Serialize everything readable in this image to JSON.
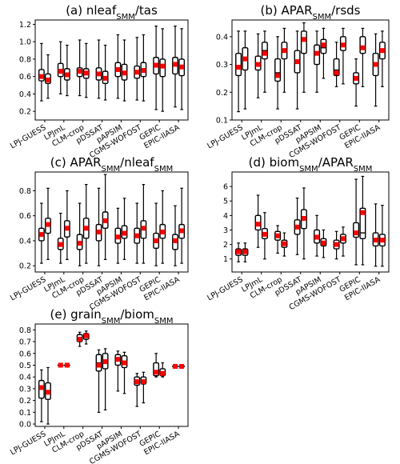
{
  "chart_data": [
    {
      "type": "box",
      "panel": "a",
      "title_parts": [
        "(a) nleaf",
        "SMM",
        "/tas"
      ],
      "ylim": [
        0.1,
        1.25
      ],
      "yticks": [
        0.2,
        0.4,
        0.6,
        0.8,
        1.0,
        1.2
      ],
      "categories": [
        "LPJ-GUESS",
        "LPJmL",
        "CLM-crop",
        "pDSSAT",
        "pAPSIM",
        "CGMS-WOFOST",
        "GEPIC",
        "EPIC-IIASA"
      ],
      "models": [
        [
          {
            "wlo": 0.32,
            "q1": 0.55,
            "med": 0.6,
            "q3": 0.68,
            "whi": 0.98,
            "mean": 0.6
          },
          {
            "wlo": 0.35,
            "q1": 0.52,
            "med": 0.57,
            "q3": 0.63,
            "whi": 0.85,
            "mean": 0.56
          }
        ],
        [
          {
            "wlo": 0.4,
            "q1": 0.6,
            "med": 0.66,
            "q3": 0.75,
            "whi": 1.0,
            "mean": 0.66
          },
          {
            "wlo": 0.38,
            "q1": 0.56,
            "med": 0.62,
            "q3": 0.69,
            "whi": 0.96,
            "mean": 0.62
          }
        ],
        [
          {
            "wlo": 0.38,
            "q1": 0.6,
            "med": 0.66,
            "q3": 0.7,
            "whi": 1.02,
            "mean": 0.66
          },
          {
            "wlo": 0.36,
            "q1": 0.58,
            "med": 0.64,
            "q3": 0.69,
            "whi": 0.98,
            "mean": 0.64
          }
        ],
        [
          {
            "wlo": 0.35,
            "q1": 0.56,
            "med": 0.62,
            "q3": 0.7,
            "whi": 1.02,
            "mean": 0.63
          },
          {
            "wlo": 0.33,
            "q1": 0.52,
            "med": 0.58,
            "q3": 0.66,
            "whi": 0.96,
            "mean": 0.58
          }
        ],
        [
          {
            "wlo": 0.35,
            "q1": 0.6,
            "med": 0.68,
            "q3": 0.76,
            "whi": 1.08,
            "mean": 0.68
          },
          {
            "wlo": 0.32,
            "q1": 0.56,
            "med": 0.64,
            "q3": 0.74,
            "whi": 1.02,
            "mean": 0.64
          }
        ],
        [
          {
            "wlo": 0.33,
            "q1": 0.58,
            "med": 0.65,
            "q3": 0.72,
            "whi": 1.05,
            "mean": 0.65
          },
          {
            "wlo": 0.32,
            "q1": 0.6,
            "med": 0.67,
            "q3": 0.76,
            "whi": 1.08,
            "mean": 0.67
          }
        ],
        [
          {
            "wlo": 0.22,
            "q1": 0.63,
            "med": 0.72,
            "q3": 0.82,
            "whi": 1.18,
            "mean": 0.73
          },
          {
            "wlo": 0.2,
            "q1": 0.6,
            "med": 0.7,
            "q3": 0.8,
            "whi": 1.15,
            "mean": 0.72
          }
        ],
        [
          {
            "wlo": 0.25,
            "q1": 0.63,
            "med": 0.74,
            "q3": 0.82,
            "whi": 1.18,
            "mean": 0.74
          },
          {
            "wlo": 0.22,
            "q1": 0.61,
            "med": 0.72,
            "q3": 0.8,
            "whi": 1.15,
            "mean": 0.71
          }
        ]
      ]
    },
    {
      "type": "box",
      "panel": "b",
      "title_parts": [
        "(b) APAR",
        "SMM",
        "/rsds"
      ],
      "ylim": [
        0.1,
        0.46
      ],
      "yticks": [
        0.1,
        0.2,
        0.3,
        0.4
      ],
      "categories": [
        "LPJ-GUESS",
        "LPJmL",
        "CLM-crop",
        "pDSSAT",
        "pAPSIM",
        "CGMS-WOFOST",
        "GEPIC",
        "EPIC-IIASA"
      ],
      "models": [
        [
          {
            "wlo": 0.13,
            "q1": 0.26,
            "med": 0.29,
            "q3": 0.34,
            "whi": 0.42,
            "mean": 0.29
          },
          {
            "wlo": 0.14,
            "q1": 0.28,
            "med": 0.32,
            "q3": 0.36,
            "whi": 0.42,
            "mean": 0.32
          }
        ],
        [
          {
            "wlo": 0.18,
            "q1": 0.28,
            "med": 0.3,
            "q3": 0.33,
            "whi": 0.41,
            "mean": 0.3
          },
          {
            "wlo": 0.2,
            "q1": 0.32,
            "med": 0.35,
            "q3": 0.38,
            "whi": 0.42,
            "mean": 0.34
          }
        ],
        [
          {
            "wlo": 0.14,
            "q1": 0.24,
            "med": 0.27,
            "q3": 0.32,
            "whi": 0.4,
            "mean": 0.26
          },
          {
            "wlo": 0.2,
            "q1": 0.32,
            "med": 0.35,
            "q3": 0.38,
            "whi": 0.43,
            "mean": 0.35
          }
        ],
        [
          {
            "wlo": 0.14,
            "q1": 0.27,
            "med": 0.31,
            "q3": 0.35,
            "whi": 0.42,
            "mean": 0.31
          },
          {
            "wlo": 0.2,
            "q1": 0.34,
            "med": 0.39,
            "q3": 0.42,
            "whi": 0.45,
            "mean": 0.39
          }
        ],
        [
          {
            "wlo": 0.2,
            "q1": 0.3,
            "med": 0.34,
            "q3": 0.37,
            "whi": 0.42,
            "mean": 0.34
          },
          {
            "wlo": 0.25,
            "q1": 0.34,
            "med": 0.36,
            "q3": 0.39,
            "whi": 0.43,
            "mean": 0.37
          }
        ],
        [
          {
            "wlo": 0.22,
            "q1": 0.26,
            "med": 0.28,
            "q3": 0.32,
            "whi": 0.38,
            "mean": 0.27
          },
          {
            "wlo": 0.23,
            "q1": 0.35,
            "med": 0.37,
            "q3": 0.4,
            "whi": 0.43,
            "mean": 0.37
          }
        ],
        [
          {
            "wlo": 0.15,
            "q1": 0.23,
            "med": 0.25,
            "q3": 0.27,
            "whi": 0.32,
            "mean": 0.25
          },
          {
            "wlo": 0.22,
            "q1": 0.34,
            "med": 0.36,
            "q3": 0.4,
            "whi": 0.43,
            "mean": 0.36
          }
        ],
        [
          {
            "wlo": 0.15,
            "q1": 0.26,
            "med": 0.3,
            "q3": 0.34,
            "whi": 0.41,
            "mean": 0.3
          },
          {
            "wlo": 0.22,
            "q1": 0.32,
            "med": 0.35,
            "q3": 0.38,
            "whi": 0.42,
            "mean": 0.35
          }
        ]
      ]
    },
    {
      "type": "box",
      "panel": "c",
      "title_parts": [
        "(c) APAR",
        "SMM",
        "/nleaf",
        "SMM"
      ],
      "ylim": [
        0.15,
        0.95
      ],
      "yticks": [
        0.2,
        0.4,
        0.6,
        0.8
      ],
      "categories": [
        "LPJ-GUESS",
        "LPJmL",
        "CLM-crop",
        "pDSSAT",
        "pAPSIM",
        "CGMS-WOFOST",
        "GEPIC",
        "EPIC-IIASA"
      ],
      "models": [
        [
          {
            "wlo": 0.22,
            "q1": 0.4,
            "med": 0.45,
            "q3": 0.5,
            "whi": 0.7,
            "mean": 0.45
          },
          {
            "wlo": 0.25,
            "q1": 0.46,
            "med": 0.53,
            "q3": 0.58,
            "whi": 0.82,
            "mean": 0.53
          }
        ],
        [
          {
            "wlo": 0.22,
            "q1": 0.33,
            "med": 0.37,
            "q3": 0.42,
            "whi": 0.62,
            "mean": 0.37
          },
          {
            "wlo": 0.25,
            "q1": 0.43,
            "med": 0.5,
            "q3": 0.56,
            "whi": 0.8,
            "mean": 0.5
          }
        ],
        [
          {
            "wlo": 0.2,
            "q1": 0.33,
            "med": 0.38,
            "q3": 0.45,
            "whi": 0.7,
            "mean": 0.38
          },
          {
            "wlo": 0.22,
            "q1": 0.42,
            "med": 0.5,
            "q3": 0.58,
            "whi": 0.85,
            "mean": 0.5
          }
        ],
        [
          {
            "wlo": 0.2,
            "q1": 0.4,
            "med": 0.47,
            "q3": 0.53,
            "whi": 0.82,
            "mean": 0.47
          },
          {
            "wlo": 0.25,
            "q1": 0.5,
            "med": 0.56,
            "q3": 0.63,
            "whi": 0.93,
            "mean": 0.56
          }
        ],
        [
          {
            "wlo": 0.22,
            "q1": 0.38,
            "med": 0.43,
            "q3": 0.5,
            "whi": 0.66,
            "mean": 0.43
          },
          {
            "wlo": 0.25,
            "q1": 0.42,
            "med": 0.46,
            "q3": 0.52,
            "whi": 0.74,
            "mean": 0.46
          }
        ],
        [
          {
            "wlo": 0.22,
            "q1": 0.38,
            "med": 0.44,
            "q3": 0.5,
            "whi": 0.7,
            "mean": 0.44
          },
          {
            "wlo": 0.22,
            "q1": 0.42,
            "med": 0.5,
            "q3": 0.56,
            "whi": 0.85,
            "mean": 0.5
          }
        ],
        [
          {
            "wlo": 0.2,
            "q1": 0.34,
            "med": 0.4,
            "q3": 0.46,
            "whi": 0.7,
            "mean": 0.4
          },
          {
            "wlo": 0.22,
            "q1": 0.42,
            "med": 0.47,
            "q3": 0.53,
            "whi": 0.8,
            "mean": 0.47
          }
        ],
        [
          {
            "wlo": 0.2,
            "q1": 0.33,
            "med": 0.4,
            "q3": 0.45,
            "whi": 0.68,
            "mean": 0.4
          },
          {
            "wlo": 0.22,
            "q1": 0.42,
            "med": 0.48,
            "q3": 0.53,
            "whi": 0.82,
            "mean": 0.48
          }
        ]
      ]
    },
    {
      "type": "box",
      "panel": "d",
      "title_parts": [
        "(d) biom",
        "SMM",
        "/APAR",
        "SMM"
      ],
      "ylim": [
        0.1,
        7.0
      ],
      "yticks": [
        1,
        2,
        3,
        4,
        5,
        6
      ],
      "categories": [
        "LPJ-GUESS",
        "LPJmL",
        "CLM-crop",
        "pDSSAT",
        "pAPSIM",
        "CGMS-WOFOST",
        "GEPIC",
        "EPIC-IIASA"
      ],
      "models": [
        [
          {
            "wlo": 0.8,
            "q1": 1.25,
            "med": 1.5,
            "q3": 1.7,
            "whi": 2.1,
            "mean": 1.5
          },
          {
            "wlo": 0.8,
            "q1": 1.25,
            "med": 1.5,
            "q3": 1.7,
            "whi": 2.1,
            "mean": 1.5
          }
        ],
        [
          {
            "wlo": 1.8,
            "q1": 3.0,
            "med": 3.45,
            "q3": 4.0,
            "whi": 5.4,
            "mean": 3.4
          },
          {
            "wlo": 1.0,
            "q1": 2.4,
            "med": 2.7,
            "q3": 3.1,
            "whi": 4.2,
            "mean": 2.7
          }
        ],
        [
          {
            "wlo": 1.4,
            "q1": 2.3,
            "med": 2.6,
            "q3": 2.9,
            "whi": 3.3,
            "mean": 2.6
          },
          {
            "wlo": 1.2,
            "q1": 1.8,
            "med": 2.05,
            "q3": 2.3,
            "whi": 2.8,
            "mean": 2.05
          }
        ],
        [
          {
            "wlo": 1.3,
            "q1": 2.7,
            "med": 3.2,
            "q3": 3.7,
            "whi": 5.2,
            "mean": 3.2
          },
          {
            "wlo": 1.0,
            "q1": 3.1,
            "med": 3.8,
            "q3": 4.4,
            "whi": 5.9,
            "mean": 3.8
          }
        ],
        [
          {
            "wlo": 1.2,
            "q1": 2.1,
            "med": 2.6,
            "q3": 3.0,
            "whi": 4.0,
            "mean": 2.5
          },
          {
            "wlo": 1.1,
            "q1": 1.9,
            "med": 2.1,
            "q3": 2.4,
            "whi": 3.0,
            "mean": 2.1
          }
        ],
        [
          {
            "wlo": 1.0,
            "q1": 1.7,
            "med": 2.0,
            "q3": 2.3,
            "whi": 2.9,
            "mean": 2.0
          },
          {
            "wlo": 1.2,
            "q1": 2.1,
            "med": 2.4,
            "q3": 2.7,
            "whi": 3.2,
            "mean": 2.4
          }
        ],
        [
          {
            "wlo": 0.6,
            "q1": 2.5,
            "med": 2.8,
            "q3": 3.5,
            "whi": 6.5,
            "mean": 2.8
          },
          {
            "wlo": 0.6,
            "q1": 2.4,
            "med": 2.8,
            "q3": 4.5,
            "whi": 6.7,
            "mean": 4.2
          }
        ],
        [
          {
            "wlo": 0.5,
            "q1": 1.9,
            "med": 2.3,
            "q3": 2.8,
            "whi": 4.8,
            "mean": 2.3
          },
          {
            "wlo": 0.5,
            "q1": 1.9,
            "med": 2.3,
            "q3": 2.7,
            "whi": 4.7,
            "mean": 2.3
          }
        ]
      ]
    },
    {
      "type": "box",
      "panel": "e",
      "title_parts": [
        "(e) grain",
        "SMM",
        "/biom",
        "SMM"
      ],
      "ylim": [
        -0.02,
        0.85
      ],
      "yticks": [
        0.0,
        0.1,
        0.2,
        0.3,
        0.4,
        0.5,
        0.6,
        0.7,
        0.8
      ],
      "categories": [
        "LPJ-GUESS",
        "LPJmL",
        "CLM-crop",
        "pDSSAT",
        "pAPSIM",
        "CGMS-WOFOST",
        "GEPIC",
        "EPIC-IIASA"
      ],
      "models": [
        [
          {
            "wlo": 0.02,
            "q1": 0.22,
            "med": 0.3,
            "q3": 0.37,
            "whi": 0.46,
            "mean": 0.31
          },
          {
            "wlo": 0.0,
            "q1": 0.21,
            "med": 0.27,
            "q3": 0.35,
            "whi": 0.48,
            "mean": 0.27
          }
        ],
        [
          {
            "wlo": 0.495,
            "q1": 0.497,
            "med": 0.5,
            "q3": 0.503,
            "whi": 0.505,
            "mean": 0.5
          },
          {
            "wlo": 0.495,
            "q1": 0.497,
            "med": 0.5,
            "q3": 0.503,
            "whi": 0.505,
            "mean": 0.5
          }
        ],
        [
          {
            "wlo": 0.66,
            "q1": 0.7,
            "med": 0.73,
            "q3": 0.76,
            "whi": 0.78,
            "mean": 0.72
          },
          {
            "wlo": 0.68,
            "q1": 0.72,
            "med": 0.75,
            "q3": 0.77,
            "whi": 0.79,
            "mean": 0.75
          }
        ],
        [
          {
            "wlo": 0.1,
            "q1": 0.45,
            "med": 0.52,
            "q3": 0.59,
            "whi": 0.63,
            "mean": 0.5
          },
          {
            "wlo": 0.12,
            "q1": 0.47,
            "med": 0.54,
            "q3": 0.6,
            "whi": 0.64,
            "mean": 0.53
          }
        ],
        [
          {
            "wlo": 0.28,
            "q1": 0.5,
            "med": 0.55,
            "q3": 0.59,
            "whi": 0.62,
            "mean": 0.55
          },
          {
            "wlo": 0.26,
            "q1": 0.48,
            "med": 0.53,
            "q3": 0.58,
            "whi": 0.61,
            "mean": 0.52
          }
        ],
        [
          {
            "wlo": 0.15,
            "q1": 0.33,
            "med": 0.37,
            "q3": 0.4,
            "whi": 0.43,
            "mean": 0.36
          },
          {
            "wlo": 0.18,
            "q1": 0.34,
            "med": 0.37,
            "q3": 0.4,
            "whi": 0.44,
            "mean": 0.36
          }
        ],
        [
          {
            "wlo": 0.4,
            "q1": 0.41,
            "med": 0.44,
            "q3": 0.52,
            "whi": 0.6,
            "mean": 0.44
          },
          {
            "wlo": 0.4,
            "q1": 0.41,
            "med": 0.43,
            "q3": 0.47,
            "whi": 0.52,
            "mean": 0.43
          }
        ],
        [
          {
            "wlo": 0.48,
            "q1": 0.485,
            "med": 0.49,
            "q3": 0.495,
            "whi": 0.5,
            "mean": 0.49
          },
          {
            "wlo": 0.48,
            "q1": 0.485,
            "med": 0.49,
            "q3": 0.495,
            "whi": 0.5,
            "mean": 0.49
          }
        ]
      ]
    }
  ],
  "colors": {
    "mean_marker": "#ff0000",
    "box_edge": "#000000",
    "box_face": "#ffffff"
  }
}
